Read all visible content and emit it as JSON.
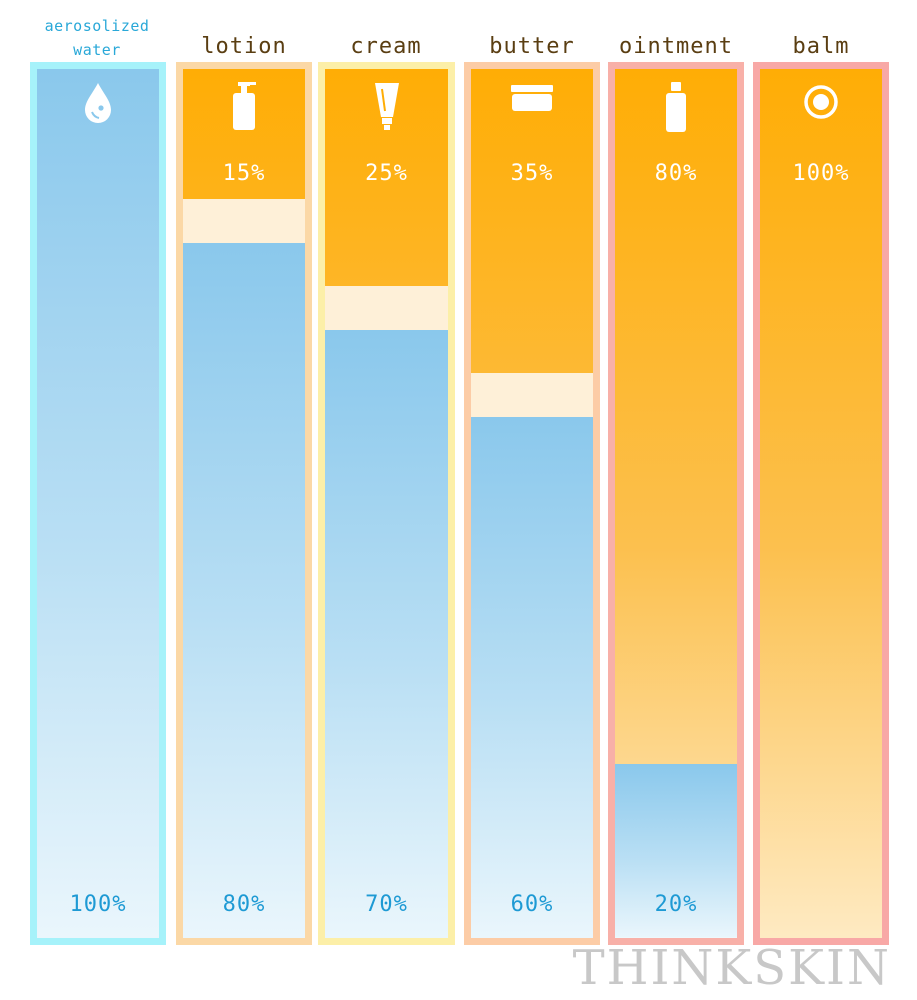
{
  "chart_data": {
    "type": "bar",
    "categories": [
      "aerosolized water",
      "lotion",
      "cream",
      "butter",
      "ointment",
      "balm"
    ],
    "series": [
      {
        "values": [
          0,
          15,
          25,
          35,
          80,
          100
        ]
      },
      {
        "values": [
          100,
          80,
          70,
          60,
          20,
          0
        ]
      }
    ],
    "ylim": [
      0,
      100
    ],
    "colors": {
      "oil": "#ffad05",
      "water": "#8ac8ec",
      "emulsion": "#fef0d8",
      "frames": [
        "#a6f2fa",
        "#fbd8a6",
        "#fcefa8",
        "#fccca6",
        "#f8b0a8",
        "#f8a8a6"
      ]
    },
    "icons": [
      "droplet-icon",
      "pump-bottle-icon",
      "tube-icon",
      "jar-icon",
      "ointment-bottle-icon",
      "tin-icon"
    ]
  },
  "labels": {
    "col0_line1": "aerosolized",
    "col0_line2": "water",
    "col1": "lotion",
    "col2": "cream",
    "col3": "butter",
    "col4": "ointment",
    "col5": "balm"
  },
  "percent_labels": {
    "oil": [
      "",
      "15%",
      "25%",
      "35%",
      "80%",
      "100%"
    ],
    "water": [
      "100%",
      "80%",
      "70%",
      "60%",
      "20%",
      ""
    ]
  },
  "brand": "THINKSKIN"
}
